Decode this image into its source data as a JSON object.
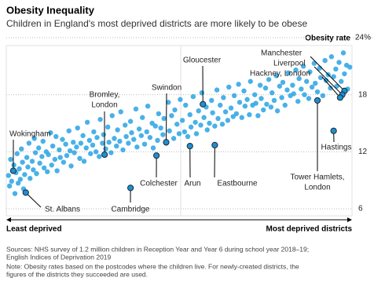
{
  "chart_data": {
    "type": "scatter",
    "title": "Obesity Inequality",
    "subtitle": "Children in England's most deprived districts are more likely to be obese",
    "y_label": "Obesity rate",
    "x_start_label": "Least deprived",
    "x_end_label": "Most deprived districts",
    "color": "#35a9e6",
    "highlight_color": "#1f8fd0",
    "xlim": [
      0,
      320
    ],
    "ylim": [
      6,
      24
    ],
    "yticks": [
      {
        "value": 24,
        "label": "24%"
      },
      18,
      12,
      6
    ],
    "grid": true,
    "x": [
      2,
      3,
      4,
      5,
      7,
      8,
      9,
      10,
      11,
      12,
      13,
      14,
      15,
      16,
      17,
      19,
      20,
      21,
      22,
      24,
      25,
      26,
      27,
      28,
      30,
      31,
      33,
      34,
      35,
      37,
      38,
      39,
      41,
      42,
      43,
      45,
      46,
      47,
      49,
      50,
      52,
      53,
      55,
      56,
      58,
      59,
      60,
      62,
      63,
      65,
      66,
      68,
      69,
      71,
      72,
      74,
      75,
      77,
      78,
      80,
      81,
      83,
      84,
      86,
      87,
      89,
      90,
      92,
      94,
      95,
      97,
      98,
      100,
      102,
      103,
      105,
      106,
      108,
      110,
      111,
      113,
      115,
      116,
      118,
      120,
      121,
      123,
      125,
      126,
      128,
      130,
      131,
      133,
      135,
      136,
      138,
      140,
      141,
      143,
      145,
      146,
      148,
      150,
      151,
      153,
      155,
      156,
      158,
      160,
      161,
      163,
      165,
      166,
      168,
      170,
      171,
      173,
      175,
      176,
      178,
      180,
      181,
      183,
      185,
      186,
      188,
      190,
      191,
      193,
      195,
      196,
      198,
      200,
      201,
      203,
      205,
      206,
      208,
      210,
      211,
      213,
      215,
      216,
      218,
      220,
      221,
      223,
      225,
      226,
      228,
      230,
      231,
      233,
      235,
      236,
      238,
      240,
      241,
      243,
      245,
      246,
      248,
      250,
      251,
      253,
      255,
      256,
      258,
      260,
      261,
      263,
      265,
      266,
      268,
      270,
      271,
      273,
      275,
      276,
      278,
      280,
      281,
      283,
      285,
      286,
      288,
      290,
      291,
      293,
      295,
      296,
      298,
      300,
      301,
      303,
      305,
      306,
      308,
      310,
      312,
      313,
      315,
      316,
      318
    ],
    "values": [
      9.5,
      8.4,
      11.2,
      8.9,
      10.6,
      7.6,
      9.8,
      11.8,
      8.7,
      10.2,
      9.1,
      12.3,
      10.9,
      8.1,
      9.6,
      11.4,
      10.4,
      12.9,
      9.2,
      11.0,
      10.1,
      13.4,
      11.9,
      9.7,
      12.4,
      10.8,
      11.5,
      13.1,
      10.3,
      12.0,
      9.9,
      11.7,
      14.0,
      10.6,
      12.6,
      11.2,
      13.6,
      10.0,
      12.2,
      11.4,
      13.3,
      10.9,
      12.8,
      11.6,
      14.2,
      12.1,
      10.5,
      13.0,
      11.9,
      12.5,
      14.5,
      11.3,
      12.9,
      13.7,
      11.0,
      12.4,
      15.1,
      13.2,
      11.8,
      12.7,
      14.1,
      12.0,
      13.5,
      11.5,
      15.4,
      12.9,
      13.8,
      12.3,
      14.6,
      13.0,
      11.9,
      15.8,
      13.4,
      12.6,
      14.3,
      13.1,
      16.2,
      12.2,
      14.8,
      13.6,
      12.9,
      15.2,
      14.0,
      13.3,
      16.5,
      12.5,
      14.4,
      13.7,
      15.6,
      12.8,
      14.1,
      16.8,
      13.5,
      15.0,
      12.4,
      14.7,
      13.2,
      16.0,
      14.5,
      13.8,
      15.5,
      12.9,
      17.2,
      14.2,
      15.8,
      13.4,
      16.4,
      14.9,
      13.9,
      17.5,
      15.3,
      14.1,
      16.9,
      13.6,
      15.9,
      14.6,
      17.8,
      15.1,
      13.9,
      16.3,
      14.8,
      18.2,
      15.6,
      16.7,
      14.3,
      15.0,
      17.4,
      16.1,
      14.7,
      18.5,
      15.5,
      16.9,
      14.9,
      17.7,
      16.2,
      15.3,
      18.8,
      16.6,
      15.7,
      17.9,
      16.0,
      19.1,
      17.2,
      15.6,
      18.4,
      16.8,
      17.5,
      15.9,
      19.4,
      16.9,
      18.0,
      17.1,
      15.8,
      19.0,
      17.6,
      16.4,
      18.7,
      17.0,
      19.6,
      16.7,
      18.2,
      17.4,
      20.0,
      16.3,
      18.9,
      17.7,
      19.3,
      16.9,
      18.5,
      20.3,
      17.9,
      19.0,
      18.1,
      20.6,
      17.3,
      19.7,
      18.6,
      21.0,
      18.0,
      19.4,
      17.6,
      20.4,
      18.8,
      21.3,
      19.2,
      18.3,
      20.8,
      19.8,
      17.9,
      21.6,
      19.5,
      20.1,
      18.7,
      22.0,
      19.9,
      20.7,
      18.9,
      21.4,
      19.4,
      22.4,
      20.2,
      21.1,
      18.6,
      20.9
    ],
    "highlights": [
      {
        "label": [
          "Wokingham"
        ],
        "x": 6.5,
        "y": 10.0
      },
      {
        "label": [
          "St. Albans"
        ],
        "x": 18,
        "y": 7.7
      },
      {
        "label": [
          "Bromley,",
          "London"
        ],
        "x": 91,
        "y": 11.7
      },
      {
        "label": [
          "Cambridge"
        ],
        "x": 115,
        "y": 8.2
      },
      {
        "label": [
          "Swindon"
        ],
        "x": 148,
        "y": 13.0
      },
      {
        "label": [
          "Colchester"
        ],
        "x": 139,
        "y": 11.6
      },
      {
        "label": [
          "Arun"
        ],
        "x": 170,
        "y": 12.6
      },
      {
        "label": [
          "Gloucester"
        ],
        "x": 182,
        "y": 17.0
      },
      {
        "label": [
          "Eastbourne"
        ],
        "x": 193,
        "y": 12.7
      },
      {
        "label": [
          "Tower Hamlets,",
          "London"
        ],
        "x": 288,
        "y": 17.4
      },
      {
        "label": [
          "Hastings"
        ],
        "x": 303,
        "y": 14.2
      },
      {
        "label": [
          "Manchester"
        ],
        "x": 313,
        "y": 18.4
      },
      {
        "label": [
          "Liverpool"
        ],
        "x": 311,
        "y": 18.0
      },
      {
        "label": [
          "Hackney, London"
        ],
        "x": 309,
        "y": 17.7
      }
    ],
    "notes": [
      "Sources: NHS survey of 1.2 million children in Reception Year and Year 6 during school year 2018–19;",
      "English Indices of Deprivation 2019",
      "Note: Obesity rates based on the postcodes where the children live. For newly-created districts, the",
      "figures of the districts they succeeded are used."
    ]
  }
}
